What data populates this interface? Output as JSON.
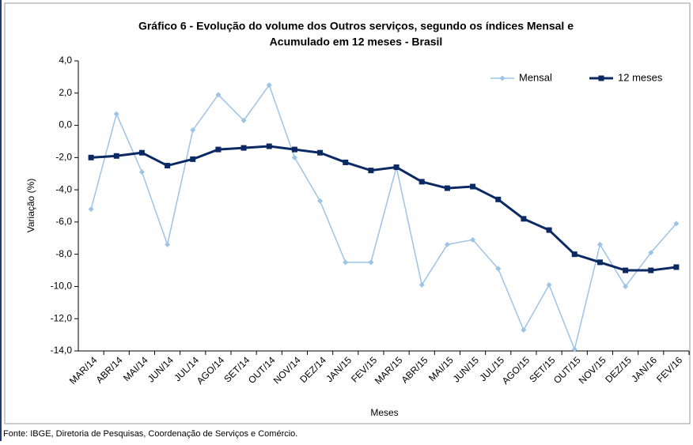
{
  "chart_data": {
    "type": "line",
    "title": [
      "Gráfico 6 - Evolução do volume dos Outros serviços, segundo os índices Mensal e",
      "Acumulado em 12 meses - Brasil"
    ],
    "y_label": "Variação (%)",
    "x_label": "Meses",
    "source": "Fonte: IBGE, Diretoria de Pesquisas, Coordenação de Serviços e Comércio.",
    "categories": [
      "MAR/14",
      "ABR/14",
      "MAI/14",
      "JUN/14",
      "JUL/14",
      "AGO/14",
      "SET/14",
      "OUT/14",
      "NOV/14",
      "DEZ/14",
      "JAN/15",
      "FEV/15",
      "MAR/15",
      "ABR/15",
      "MAI/15",
      "JUN/15",
      "JUL/15",
      "AGO/15",
      "SET/15",
      "OUT/15",
      "NOV/15",
      "DEZ/15",
      "JAN/16",
      "FEV/16"
    ],
    "series": [
      {
        "name": "Mensal",
        "color": "#9dc3e6",
        "marker": "diamond",
        "values": [
          -5.2,
          0.7,
          -2.9,
          -7.4,
          -0.3,
          1.9,
          0.3,
          2.5,
          -2.0,
          -4.7,
          -8.5,
          -8.5,
          -2.6,
          -9.9,
          -7.4,
          -7.1,
          -8.9,
          -12.7,
          -9.9,
          -13.9,
          -7.4,
          -10.0,
          -7.9,
          -6.1
        ]
      },
      {
        "name": "12 meses",
        "color": "#0b2a63",
        "marker": "square",
        "values": [
          -2.0,
          -1.9,
          -1.7,
          -2.5,
          -2.1,
          -1.5,
          -1.4,
          -1.3,
          -1.5,
          -1.7,
          -2.3,
          -2.8,
          -2.6,
          -3.5,
          -3.9,
          -3.8,
          -4.6,
          -5.8,
          -6.5,
          -8.0,
          -8.5,
          -9.0,
          -9.0,
          -8.8
        ]
      }
    ],
    "ylim": [
      -14,
      4
    ],
    "yticks": [
      {
        "value": 4,
        "label": "4,0"
      },
      {
        "value": 2,
        "label": "2,0"
      },
      {
        "value": 0,
        "label": "0,0"
      },
      {
        "value": -2,
        "label": "-2,0"
      },
      {
        "value": -4,
        "label": "-4,0"
      },
      {
        "value": -6,
        "label": "-6,0"
      },
      {
        "value": -8,
        "label": "-8,0"
      },
      {
        "value": -10,
        "label": "-10,0"
      },
      {
        "value": -12,
        "label": "-12,0"
      },
      {
        "value": -14,
        "label": "-14,0"
      }
    ],
    "grid": false,
    "legend": "upper right"
  }
}
